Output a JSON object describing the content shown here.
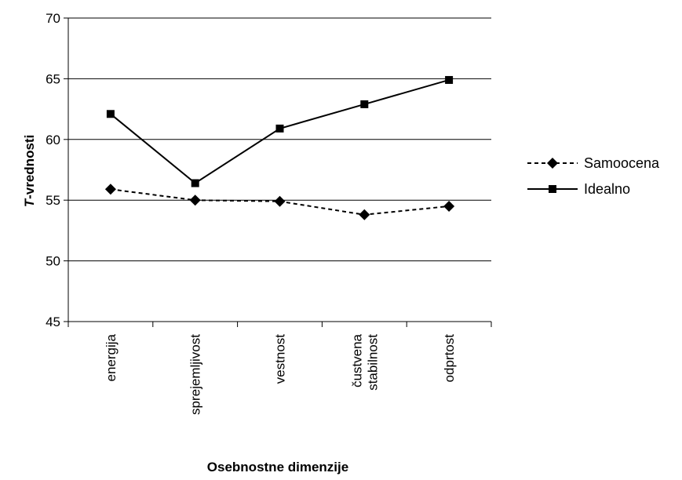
{
  "chart_data": {
    "type": "line",
    "title": "",
    "xlabel": "Osebnostne dimenzije",
    "ylabel_italic": "T",
    "ylabel_rest": "-vrednosti",
    "categories": [
      [
        "energija"
      ],
      [
        "sprejemljivost"
      ],
      [
        "vestnost"
      ],
      [
        "čustvena",
        "stabilnost"
      ],
      [
        "odprtost"
      ]
    ],
    "ylim": [
      45,
      70
    ],
    "yticks": [
      "45",
      "50",
      "55",
      "60",
      "65",
      "70"
    ],
    "grid": true,
    "legend_position": "right",
    "series": [
      {
        "name": "Samoocena",
        "values": [
          55.9,
          55.0,
          54.9,
          53.8,
          54.5
        ],
        "style": "dashed",
        "marker": "diamond",
        "color": "#000000"
      },
      {
        "name": "Idealno",
        "values": [
          62.1,
          56.4,
          60.9,
          62.9,
          64.9
        ],
        "style": "solid",
        "marker": "square",
        "color": "#000000"
      }
    ]
  }
}
